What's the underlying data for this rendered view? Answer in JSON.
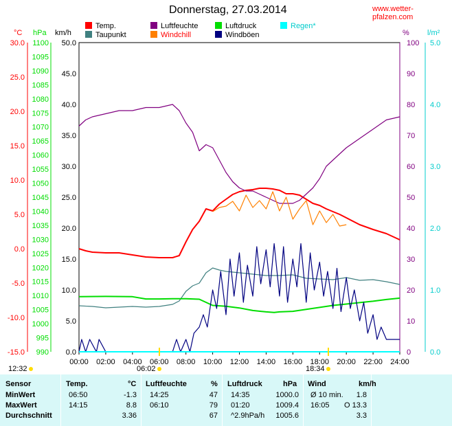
{
  "header": {
    "title": "Donnerstag, 27.03.2014",
    "site": "www.wetter-pfalzen.com"
  },
  "legend": [
    {
      "label": "Temp.",
      "color": "#ff0000"
    },
    {
      "label": "Luftfeuchte",
      "color": "#800080"
    },
    {
      "label": "Luftdruck",
      "color": "#00dd00"
    },
    {
      "label": "Regen*",
      "color": "#00ffff"
    },
    {
      "label": "Taupunkt",
      "color": "#408080"
    },
    {
      "label": "Windchill",
      "color": "#ff8000"
    },
    {
      "label": "Windböen",
      "color": "#000080"
    }
  ],
  "axes": {
    "temp": {
      "unit": "°C",
      "ticks": [
        "30.0",
        "25.0",
        "20.0",
        "15.0",
        "10.0",
        "5.0",
        "0.0",
        "-5.0",
        "-10.0",
        "-15.0"
      ],
      "color": "#ff0000"
    },
    "pressure": {
      "unit": "hPa",
      "ticks": [
        "1100",
        "1095",
        "1090",
        "1085",
        "1080",
        "1075",
        "1070",
        "1065",
        "1060",
        "1055",
        "1050",
        "1045",
        "1040",
        "1035",
        "1030",
        "1025",
        "1020",
        "1015",
        "1010",
        "1005",
        "1000",
        "995",
        "990"
      ],
      "color": "#00dd00"
    },
    "wind": {
      "unit": "km/h",
      "ticks": [
        "50.0",
        "45.0",
        "40.0",
        "35.0",
        "30.0",
        "25.0",
        "20.0",
        "15.0",
        "10.0",
        "5.0",
        "0.0"
      ],
      "color": "#000000"
    },
    "humidity": {
      "unit": "%",
      "ticks": [
        "100",
        "90",
        "80",
        "70",
        "60",
        "50",
        "40",
        "30",
        "20",
        "10",
        "0"
      ],
      "color": "#800080"
    },
    "rain": {
      "unit": "l/m²",
      "ticks": [
        "5.0",
        "4.0",
        "3.0",
        "2.0",
        "1.0",
        "0.0"
      ],
      "color": "#00cccc"
    },
    "time_ticks": [
      "00:00",
      "02:00",
      "04:00",
      "06:00",
      "08:00",
      "10:00",
      "12:00",
      "14:00",
      "16:00",
      "18:00",
      "20:00",
      "22:00",
      "24:00"
    ]
  },
  "sun": {
    "moonrise": "12:32",
    "sunrise": "06:02",
    "sunset": "18:34"
  },
  "chart_data": {
    "type": "line",
    "x_range": [
      "00:00",
      "24:00"
    ],
    "grid": false,
    "series": [
      {
        "name": "Temp.",
        "axis": "°C",
        "color": "#ff0000",
        "x": [
          0,
          0.5,
          1,
          2,
          3,
          4,
          5,
          6,
          7,
          7.5,
          8,
          8.5,
          9,
          9.5,
          10,
          10.5,
          11,
          11.5,
          12,
          12.5,
          13,
          13.5,
          14,
          14.5,
          15,
          15.5,
          16,
          16.5,
          17,
          17.5,
          18,
          18.5,
          19,
          19.5,
          20,
          21,
          22,
          23,
          24
        ],
        "y": [
          0.0,
          -0.3,
          -0.5,
          -0.6,
          -0.6,
          -0.9,
          -1.2,
          -1.3,
          -1.3,
          -1.0,
          1.0,
          2.8,
          4.0,
          5.8,
          5.5,
          6.5,
          7.2,
          7.9,
          8.3,
          8.5,
          8.6,
          8.8,
          8.8,
          8.7,
          8.5,
          8.0,
          8.0,
          7.8,
          7.2,
          6.6,
          6.3,
          5.8,
          5.4,
          5.0,
          4.5,
          3.5,
          2.8,
          2.2,
          1.3
        ]
      },
      {
        "name": "Taupunkt",
        "axis": "°C",
        "color": "#408080",
        "x": [
          0,
          1,
          2,
          3,
          4,
          5,
          6,
          7,
          7.5,
          8,
          8.5,
          9,
          9.5,
          10,
          10.5,
          11,
          12,
          13,
          14,
          15,
          16,
          17,
          18,
          19,
          20,
          21,
          22,
          23,
          24
        ],
        "y": [
          -8.3,
          -8.4,
          -8.6,
          -8.5,
          -8.4,
          -8.5,
          -8.4,
          -8.1,
          -7.6,
          -6.2,
          -5.4,
          -5.0,
          -3.5,
          -2.8,
          -3.1,
          -3.3,
          -3.5,
          -3.7,
          -3.9,
          -3.9,
          -3.8,
          -4.3,
          -4.4,
          -4.5,
          -4.2,
          -4.6,
          -4.5,
          -4.8,
          -5.2
        ]
      },
      {
        "name": "Luftfeuchte",
        "axis": "%",
        "color": "#800080",
        "x": [
          0,
          0.5,
          1,
          2,
          3,
          4,
          5,
          6,
          7,
          7.5,
          8,
          8.5,
          9,
          9.5,
          10,
          10.5,
          11,
          11.5,
          12,
          12.5,
          13,
          13.5,
          14,
          14.5,
          15,
          15.5,
          16,
          16.5,
          17,
          17.5,
          18,
          18.5,
          19,
          19.5,
          20,
          21,
          22,
          23,
          24
        ],
        "y": [
          73,
          75,
          76,
          77,
          78,
          78,
          79,
          79,
          80,
          78,
          74,
          71,
          65,
          67,
          66,
          62,
          58,
          55,
          53,
          52,
          52,
          51,
          50,
          49,
          48,
          48,
          48,
          49,
          51,
          53,
          56,
          60,
          62,
          64,
          66,
          69,
          72,
          75,
          76
        ]
      },
      {
        "name": "Windchill",
        "axis": "°C",
        "color": "#ff8000",
        "x": [
          10,
          10.5,
          11,
          11.5,
          12,
          12.5,
          13,
          13.5,
          14,
          14.5,
          15,
          15.5,
          16,
          16.5,
          17,
          17.5,
          18,
          18.5,
          19,
          19.5,
          20
        ],
        "y": [
          5.4,
          6.0,
          6.2,
          6.9,
          5.5,
          7.8,
          6.0,
          7.0,
          5.8,
          8.3,
          5.5,
          7.5,
          4.3,
          5.8,
          7.0,
          3.5,
          5.5,
          3.8,
          5.0,
          3.3,
          3.5
        ]
      },
      {
        "name": "Luftdruck",
        "axis": "hPa",
        "color": "#00dd00",
        "x": [
          0,
          2,
          4,
          5,
          6,
          7,
          8,
          9,
          10,
          11,
          12,
          13,
          14,
          14.6,
          15,
          16,
          17,
          18,
          19,
          20,
          21,
          22,
          23,
          24
        ],
        "y": [
          1009.6,
          1009.7,
          1009.6,
          1008.8,
          1008.8,
          1008.9,
          1008.9,
          1008.7,
          1006.5,
          1006.2,
          1005.6,
          1004.7,
          1004.2,
          1004.0,
          1004.2,
          1004.4,
          1005.1,
          1005.8,
          1006.5,
          1007.0,
          1007.5,
          1008.0,
          1008.6,
          1009.1
        ]
      },
      {
        "name": "Windböen",
        "axis": "km/h",
        "color": "#000080",
        "x": [
          0,
          0.2,
          0.5,
          0.8,
          1.3,
          1.5,
          2.0,
          2.5,
          3,
          4,
          5,
          6,
          7,
          7.3,
          7.6,
          8.0,
          8.3,
          8.6,
          9,
          9.3,
          9.6,
          10,
          10.3,
          10.6,
          11,
          11.3,
          11.6,
          12,
          12.3,
          12.6,
          13,
          13.3,
          13.6,
          14,
          14.3,
          14.6,
          15,
          15.3,
          15.6,
          16,
          16.3,
          16.6,
          17,
          17.3,
          17.6,
          18,
          18.3,
          18.6,
          19,
          19.3,
          19.6,
          20,
          20.3,
          20.6,
          21,
          21.3,
          21.6,
          22,
          22.3,
          22.6,
          23,
          23.5,
          24
        ],
        "y": [
          0,
          2.0,
          0,
          2.0,
          0,
          2.0,
          0,
          0,
          0,
          0,
          0,
          0,
          0,
          2.0,
          0,
          2.0,
          0,
          3.0,
          4.0,
          6.0,
          4.0,
          10.0,
          7.0,
          13.0,
          6.0,
          15.0,
          9.0,
          16.0,
          8.0,
          14.0,
          9.0,
          17.0,
          11.0,
          16.5,
          10.5,
          17.5,
          9.0,
          17.0,
          8.0,
          15.0,
          10.5,
          17.5,
          8.0,
          16.0,
          10.0,
          14.5,
          9.0,
          13.0,
          7.0,
          13.5,
          6.5,
          12.0,
          7.0,
          10.0,
          5.0,
          8.0,
          3.0,
          6.0,
          2.0,
          4.0,
          2.0,
          2.0,
          2.0
        ]
      },
      {
        "name": "Regen*",
        "axis": "l/m²",
        "color": "#00ffff",
        "x": [
          0,
          24
        ],
        "y": [
          0,
          0
        ]
      }
    ]
  },
  "stats": {
    "headers": {
      "sensor": "Sensor",
      "temp": "Temp.",
      "temp_unit": "°C",
      "hum": "Luftfeuchte",
      "hum_unit": "%",
      "press": "Luftdruck",
      "press_unit": "hPa",
      "wind": "Wind",
      "wind_unit": "km/h"
    },
    "rows": [
      {
        "label": "MinWert",
        "temp_time": "06:50",
        "temp_val": "-1.3",
        "hum_time": "14:25",
        "hum_val": "47",
        "press_time": "14:35",
        "press_val": "1000.0",
        "wind_time": "Ø 10 min.",
        "wind_val": "1.8"
      },
      {
        "label": "MaxWert",
        "temp_time": "14:15",
        "temp_val": "8.8",
        "hum_time": "06:10",
        "hum_val": "79",
        "press_time": "01:20",
        "press_val": "1009.4",
        "wind_time": "16:05",
        "wind_val": "O 13.3"
      },
      {
        "label": "Durchschnitt",
        "temp_time": "",
        "temp_val": "3.36",
        "hum_time": "",
        "hum_val": "67",
        "press_time": "^2.9hPa/h",
        "press_val": "1005.6",
        "wind_time": "",
        "wind_val": "3.3"
      }
    ]
  }
}
